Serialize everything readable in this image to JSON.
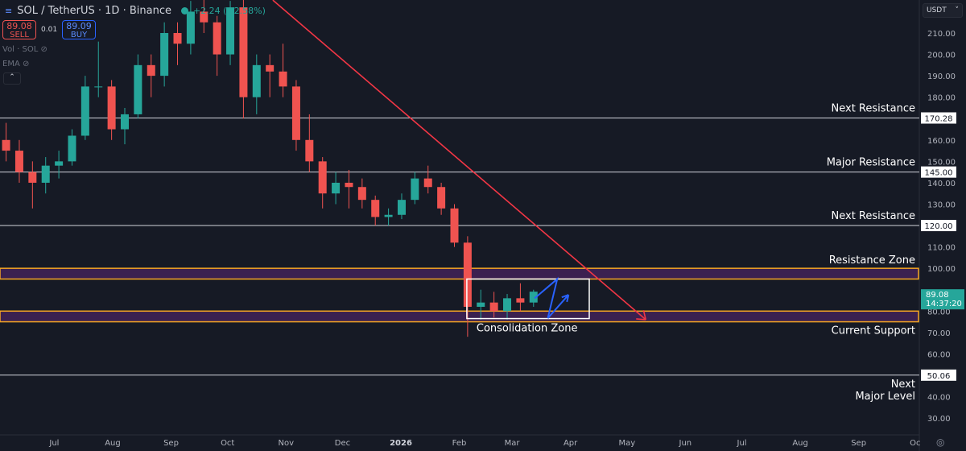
{
  "header": {
    "symbol": "SOL / TetherUS · 1D · Binance",
    "change": "+2.24 (+2.58%)"
  },
  "trade": {
    "sell_price": "89.08",
    "sell_label": "SELL",
    "spread": "0.01",
    "buy_price": "89.09",
    "buy_label": "BUY"
  },
  "indicators": [
    {
      "label": "Vol · SOL",
      "icon": "eye-off-icon"
    },
    {
      "label": "EMA",
      "icon": "eye-off-icon"
    }
  ],
  "currency": "USDT",
  "current_price": {
    "value": "89.08",
    "countdown": "14:37:20"
  },
  "colors": {
    "background": "#161a25",
    "up": "#26a69a",
    "down": "#ef5350",
    "trendline": "#f23645",
    "zone_border": "#f5a623",
    "zone_fill": "#3b2150",
    "projection": "#2962ff",
    "level_line": "#d1d4dc"
  },
  "chart_data": {
    "type": "candlestick",
    "interval": "1D (shown aggregated, approximate)",
    "ylim": [
      25,
      225
    ],
    "yticks": [
      30,
      40,
      60,
      70,
      80,
      100,
      110,
      130,
      140,
      150,
      160,
      180,
      190,
      200,
      210
    ],
    "xticks": [
      {
        "label": "Jul",
        "date": "2025-07-01"
      },
      {
        "label": "Aug",
        "date": "2025-08-01"
      },
      {
        "label": "Sep",
        "date": "2025-09-01"
      },
      {
        "label": "Oct",
        "date": "2025-10-01"
      },
      {
        "label": "Nov",
        "date": "2025-11-01"
      },
      {
        "label": "Dec",
        "date": "2025-12-01"
      },
      {
        "label": "2026",
        "date": "2026-01-01"
      },
      {
        "label": "Feb",
        "date": "2026-02-01"
      },
      {
        "label": "Mar",
        "date": "2026-03-01"
      },
      {
        "label": "Apr",
        "date": "2026-04-01"
      },
      {
        "label": "May",
        "date": "2026-05-01"
      },
      {
        "label": "Jun",
        "date": "2026-06-01"
      },
      {
        "label": "Jul",
        "date": "2026-07-01"
      },
      {
        "label": "Aug",
        "date": "2026-08-01"
      },
      {
        "label": "Sep",
        "date": "2026-09-01"
      },
      {
        "label": "Oc",
        "date": "2026-10-01"
      }
    ],
    "candles": [
      [
        "2025-06-02",
        160,
        168,
        150,
        155
      ],
      [
        "2025-06-09",
        155,
        160,
        140,
        145
      ],
      [
        "2025-06-16",
        145,
        150,
        128,
        140
      ],
      [
        "2025-06-23",
        140,
        152,
        135,
        148
      ],
      [
        "2025-06-30",
        148,
        155,
        142,
        150
      ],
      [
        "2025-07-07",
        150,
        165,
        148,
        162
      ],
      [
        "2025-07-14",
        162,
        190,
        160,
        185
      ],
      [
        "2025-07-21",
        185,
        206,
        180,
        185
      ],
      [
        "2025-07-28",
        185,
        188,
        160,
        165
      ],
      [
        "2025-08-04",
        165,
        175,
        158,
        172
      ],
      [
        "2025-08-11",
        172,
        200,
        170,
        195
      ],
      [
        "2025-08-18",
        195,
        200,
        180,
        190
      ],
      [
        "2025-08-25",
        190,
        215,
        185,
        210
      ],
      [
        "2025-09-01",
        210,
        215,
        195,
        205
      ],
      [
        "2025-09-08",
        205,
        225,
        200,
        220
      ],
      [
        "2025-09-15",
        220,
        230,
        210,
        215
      ],
      [
        "2025-09-22",
        215,
        218,
        190,
        200
      ],
      [
        "2025-09-29",
        200,
        225,
        195,
        222
      ],
      [
        "2025-10-06",
        222,
        228,
        170,
        180
      ],
      [
        "2025-10-13",
        180,
        200,
        172,
        195
      ],
      [
        "2025-10-20",
        195,
        200,
        180,
        192
      ],
      [
        "2025-10-27",
        192,
        205,
        180,
        185
      ],
      [
        "2025-11-03",
        185,
        188,
        155,
        160
      ],
      [
        "2025-11-10",
        160,
        172,
        145,
        150
      ],
      [
        "2025-11-17",
        150,
        152,
        128,
        135
      ],
      [
        "2025-11-24",
        135,
        145,
        130,
        140
      ],
      [
        "2025-12-01",
        140,
        146,
        128,
        138
      ],
      [
        "2025-12-08",
        138,
        142,
        128,
        132
      ],
      [
        "2025-12-15",
        132,
        134,
        120,
        124
      ],
      [
        "2025-12-22",
        124,
        128,
        120,
        125
      ],
      [
        "2025-12-29",
        125,
        135,
        123,
        132
      ],
      [
        "2026-01-05",
        132,
        145,
        130,
        142
      ],
      [
        "2026-01-12",
        142,
        148,
        135,
        138
      ],
      [
        "2026-01-19",
        138,
        140,
        125,
        128
      ],
      [
        "2026-01-26",
        128,
        130,
        110,
        112
      ],
      [
        "2026-02-02",
        112,
        115,
        68,
        82
      ],
      [
        "2026-02-09",
        82,
        90,
        76,
        84
      ],
      [
        "2026-02-16",
        84,
        89,
        77,
        80
      ],
      [
        "2026-02-23",
        80,
        88,
        76,
        86
      ],
      [
        "2026-03-02",
        86,
        93,
        80,
        84
      ],
      [
        "2026-03-09",
        84,
        90,
        82,
        89.08
      ]
    ],
    "levels": [
      {
        "price": 170.28,
        "label": "Next Resistance",
        "tag": "170.28"
      },
      {
        "price": 145.0,
        "label": "Major Resistance",
        "tag": "145.00"
      },
      {
        "price": 120.0,
        "label": "Next Resistance",
        "tag": "120.00"
      },
      {
        "price": 50.06,
        "label": "Next\nMajor Level",
        "tag": "50.06"
      }
    ],
    "zones": [
      {
        "low": 95,
        "high": 100,
        "label": "Resistance Zone",
        "label_pos": "above"
      },
      {
        "low": 75,
        "high": 80,
        "label": "Current Support",
        "label_pos": "below"
      }
    ],
    "consolidation_box": {
      "start": "2026-02-05",
      "end": "2026-04-11",
      "low": 76.5,
      "high": 95,
      "label": "Consolidation Zone"
    },
    "trendline": {
      "from": [
        "2025-10-25",
        225.4
      ],
      "to": [
        "2026-05-11",
        76
      ]
    },
    "projection": [
      [
        "2026-03-13",
        86
      ],
      [
        "2026-03-25",
        95
      ],
      [
        "2026-03-20",
        76.7
      ],
      [
        "2026-03-31",
        87.6
      ]
    ]
  }
}
